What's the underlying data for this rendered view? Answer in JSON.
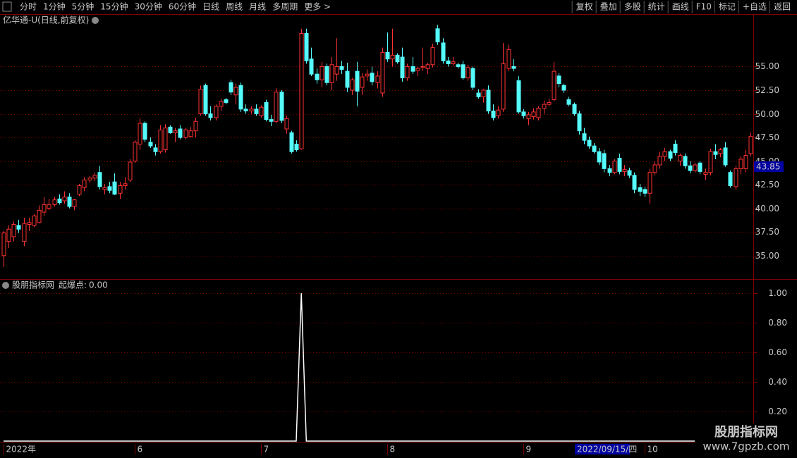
{
  "toolbar": {
    "left": [
      "分时",
      "1分钟",
      "5分钟",
      "15分钟",
      "30分钟",
      "60分钟",
      "日线",
      "周线",
      "月线",
      "多周期",
      "更多 >"
    ],
    "active_tab": 6,
    "right": [
      "复权",
      "叠加",
      "多股",
      "统计",
      "画线",
      "F10",
      "标记",
      "+自选",
      "返回"
    ]
  },
  "main_header": "亿华通-U(日线,前复权)",
  "last_price": "43.85",
  "indicator_header": {
    "name": "股朋指标网",
    "readout_label": "起爆点:",
    "readout_value": "0.00"
  },
  "cursor_date": "2022/09/15/四",
  "watermark": {
    "title": "股朋指标网",
    "url": "www.7gpzb.com"
  },
  "chart_data": [
    {
      "type": "candlestick",
      "up_color": "#ff3232",
      "down_color": "#54fcfc",
      "grid": true,
      "ylim": [
        32.6,
        60.4
      ],
      "yticks": [
        {
          "value": 35,
          "label": "35.00"
        },
        {
          "value": 37.5,
          "label": "37.50"
        },
        {
          "value": 40,
          "label": "40.00"
        },
        {
          "value": 42.5,
          "label": "42.50"
        },
        {
          "value": 45,
          "label": "45.00"
        },
        {
          "value": 47.5,
          "label": "47.50"
        },
        {
          "value": 50,
          "label": "50.00"
        },
        {
          "value": 52.5,
          "label": "52.50"
        },
        {
          "value": 55,
          "label": "55.00"
        }
      ],
      "categories": [
        "2022年",
        null,
        null,
        null,
        null,
        null,
        null,
        null,
        null,
        null,
        null,
        null,
        null,
        null,
        null,
        null,
        null,
        null,
        null,
        null,
        null,
        null,
        null,
        null,
        null,
        null,
        "6",
        null,
        null,
        null,
        null,
        null,
        null,
        null,
        null,
        null,
        null,
        null,
        null,
        null,
        null,
        null,
        null,
        null,
        null,
        null,
        null,
        null,
        null,
        null,
        null,
        "7",
        null,
        null,
        null,
        null,
        null,
        null,
        null,
        null,
        null,
        null,
        null,
        null,
        null,
        null,
        null,
        null,
        null,
        null,
        null,
        null,
        null,
        null,
        null,
        null,
        "8",
        null,
        null,
        null,
        null,
        null,
        null,
        null,
        null,
        null,
        null,
        null,
        null,
        null,
        null,
        null,
        null,
        null,
        null,
        null,
        null,
        null,
        null,
        null,
        null,
        null,
        null,
        "9",
        null,
        null,
        null,
        null,
        null,
        null,
        null,
        null,
        null,
        null,
        null,
        null,
        null,
        null,
        null,
        null,
        null,
        null,
        null,
        null,
        null,
        null,
        null,
        "10",
        null,
        null,
        null,
        null,
        null,
        null,
        null,
        null,
        null,
        null,
        null,
        null,
        null,
        null,
        null,
        null,
        null,
        null,
        null,
        null,
        null
      ],
      "ohlc": [
        [
          35.0,
          37.6,
          33.8,
          37.4
        ],
        [
          36.5,
          38.2,
          35.8,
          37.8
        ],
        [
          37.0,
          38.6,
          36.5,
          38.3
        ],
        [
          38.2,
          38.8,
          37.4,
          37.8
        ],
        [
          36.5,
          39.0,
          36.0,
          38.4
        ],
        [
          38.3,
          39.0,
          37.6,
          38.5
        ],
        [
          38.2,
          39.4,
          38.0,
          39.2
        ],
        [
          38.5,
          40.3,
          38.4,
          39.8
        ],
        [
          39.6,
          41.2,
          39.2,
          40.4
        ],
        [
          40.0,
          41.0,
          39.8,
          40.4
        ],
        [
          40.4,
          41.2,
          40.2,
          40.9
        ],
        [
          41.0,
          41.5,
          40.4,
          40.6
        ],
        [
          40.8,
          41.8,
          40.5,
          41.2
        ],
        [
          41.2,
          41.6,
          40.0,
          40.2
        ],
        [
          40.2,
          41.0,
          39.8,
          40.9
        ],
        [
          41.5,
          42.6,
          41.3,
          42.4
        ],
        [
          42.2,
          43.3,
          41.8,
          43.0
        ],
        [
          43.0,
          43.4,
          42.7,
          43.2
        ],
        [
          43.2,
          43.8,
          42.9,
          43.5
        ],
        [
          43.8,
          44.5,
          42.0,
          42.3
        ],
        [
          42.0,
          42.6,
          41.5,
          42.2
        ],
        [
          42.3,
          42.8,
          41.6,
          41.9
        ],
        [
          42.8,
          43.7,
          41.4,
          41.5
        ],
        [
          41.6,
          42.8,
          41.0,
          42.4
        ],
        [
          42.4,
          43.3,
          42.0,
          42.6
        ],
        [
          43.0,
          45.2,
          42.8,
          44.9
        ],
        [
          45.0,
          47.2,
          44.8,
          47.0
        ],
        [
          46.8,
          49.5,
          46.2,
          49.0
        ],
        [
          49.0,
          49.2,
          47.0,
          47.3
        ],
        [
          47.0,
          47.5,
          46.4,
          46.6
        ],
        [
          46.4,
          46.8,
          45.6,
          46.0
        ],
        [
          46.0,
          48.8,
          45.8,
          48.3
        ],
        [
          46.2,
          48.9,
          45.9,
          48.5
        ],
        [
          48.6,
          48.8,
          47.9,
          48.0
        ],
        [
          48.0,
          48.5,
          47.0,
          48.2
        ],
        [
          48.4,
          48.8,
          47.3,
          47.5
        ],
        [
          47.5,
          48.5,
          47.3,
          48.3
        ],
        [
          47.6,
          48.6,
          47.5,
          48.2
        ],
        [
          48.2,
          49.6,
          47.5,
          49.2
        ],
        [
          50.0,
          53.0,
          49.8,
          52.6
        ],
        [
          53.0,
          53.2,
          49.8,
          50.0
        ],
        [
          50.0,
          50.8,
          49.3,
          49.6
        ],
        [
          49.6,
          51.0,
          49.3,
          50.8
        ],
        [
          50.8,
          51.6,
          50.3,
          51.3
        ],
        [
          51.5,
          51.7,
          51.0,
          51.2
        ],
        [
          53.3,
          53.6,
          52.0,
          52.3
        ],
        [
          52.0,
          53.2,
          51.0,
          52.8
        ],
        [
          53.0,
          53.3,
          50.2,
          50.5
        ],
        [
          50.5,
          51.0,
          50.0,
          50.3
        ],
        [
          50.3,
          50.8,
          50.0,
          50.5
        ],
        [
          50.5,
          51.0,
          49.8,
          50.0
        ],
        [
          49.8,
          50.9,
          49.6,
          50.7
        ],
        [
          51.2,
          51.5,
          49.2,
          49.4
        ],
        [
          49.4,
          49.9,
          48.7,
          49.2
        ],
        [
          49.2,
          52.7,
          49.0,
          52.3
        ],
        [
          52.3,
          52.5,
          49.0,
          49.3
        ],
        [
          48.4,
          49.8,
          47.9,
          49.5
        ],
        [
          48.0,
          48.2,
          45.8,
          46.0
        ],
        [
          46.8,
          47.2,
          46.0,
          46.2
        ],
        [
          46.3,
          59.0,
          46.2,
          58.5
        ],
        [
          58.5,
          59.0,
          55.3,
          55.6
        ],
        [
          55.8,
          57.0,
          54.0,
          54.2
        ],
        [
          54.2,
          54.8,
          53.2,
          53.6
        ],
        [
          53.6,
          55.5,
          52.8,
          55.0
        ],
        [
          55.0,
          55.3,
          53.0,
          53.3
        ],
        [
          53.3,
          56.0,
          52.5,
          55.2
        ],
        [
          54.2,
          58.0,
          53.5,
          55.0
        ],
        [
          55.0,
          55.6,
          54.2,
          54.7
        ],
        [
          54.5,
          55.4,
          52.3,
          52.8
        ],
        [
          52.5,
          53.8,
          52.0,
          53.6
        ],
        [
          54.5,
          55.5,
          50.8,
          52.4
        ],
        [
          52.8,
          54.3,
          52.0,
          53.9
        ],
        [
          54.0,
          54.7,
          53.5,
          54.2
        ],
        [
          54.3,
          55.0,
          53.0,
          53.4
        ],
        [
          53.3,
          54.5,
          52.7,
          54.0
        ],
        [
          52.2,
          57.0,
          51.8,
          56.5
        ],
        [
          56.5,
          58.6,
          55.5,
          55.8
        ],
        [
          55.8,
          59.0,
          55.0,
          56.2
        ],
        [
          56.2,
          56.4,
          55.3,
          55.5
        ],
        [
          56.0,
          57.0,
          53.4,
          53.8
        ],
        [
          53.8,
          55.3,
          53.5,
          55.0
        ],
        [
          55.0,
          56.0,
          54.2,
          54.5
        ],
        [
          54.6,
          55.0,
          54.0,
          54.8
        ],
        [
          54.9,
          57.0,
          54.5,
          55.0
        ],
        [
          54.8,
          55.4,
          54.2,
          55.2
        ],
        [
          55.2,
          57.4,
          54.9,
          57.0
        ],
        [
          59.0,
          59.4,
          57.3,
          57.6
        ],
        [
          57.5,
          58.0,
          55.3,
          55.6
        ],
        [
          55.6,
          56.0,
          55.0,
          55.3
        ],
        [
          55.3,
          56.0,
          55.1,
          55.5
        ],
        [
          55.2,
          55.4,
          54.8,
          55.0
        ],
        [
          55.2,
          55.6,
          53.6,
          53.8
        ],
        [
          53.8,
          55.2,
          53.5,
          54.9
        ],
        [
          54.8,
          55.0,
          52.5,
          52.8
        ],
        [
          52.2,
          52.6,
          51.6,
          51.8
        ],
        [
          51.8,
          52.6,
          51.2,
          52.5
        ],
        [
          52.5,
          53.0,
          50.0,
          50.3
        ],
        [
          50.3,
          51.0,
          49.3,
          49.6
        ],
        [
          49.8,
          50.8,
          49.5,
          50.4
        ],
        [
          50.5,
          57.5,
          50.2,
          55.3
        ],
        [
          54.8,
          57.3,
          54.5,
          56.8
        ],
        [
          55.0,
          55.8,
          54.5,
          54.8
        ],
        [
          53.5,
          54.0,
          50.0,
          50.2
        ],
        [
          50.2,
          50.5,
          49.5,
          49.8
        ],
        [
          49.5,
          50.2,
          48.8,
          49.9
        ],
        [
          49.7,
          50.6,
          49.4,
          50.2
        ],
        [
          49.6,
          50.8,
          49.3,
          50.6
        ],
        [
          50.6,
          51.4,
          50.0,
          51.0
        ],
        [
          51.0,
          51.6,
          50.8,
          51.2
        ],
        [
          51.5,
          55.5,
          51.3,
          54.5
        ],
        [
          54.0,
          54.3,
          52.8,
          53.2
        ],
        [
          53.0,
          53.2,
          52.2,
          52.5
        ],
        [
          51.5,
          51.8,
          50.8,
          51.0
        ],
        [
          51.0,
          51.2,
          49.8,
          50.0
        ],
        [
          50.0,
          50.3,
          47.8,
          48.2
        ],
        [
          47.9,
          48.5,
          46.8,
          47.2
        ],
        [
          47.2,
          47.6,
          46.3,
          46.6
        ],
        [
          46.6,
          46.9,
          45.8,
          46.0
        ],
        [
          46.0,
          46.4,
          44.6,
          44.9
        ],
        [
          45.8,
          46.2,
          43.8,
          44.2
        ],
        [
          44.2,
          44.6,
          43.4,
          43.8
        ],
        [
          43.8,
          45.2,
          43.6,
          45.0
        ],
        [
          45.3,
          45.8,
          43.6,
          43.9
        ],
        [
          43.9,
          44.6,
          43.4,
          44.1
        ],
        [
          44.0,
          44.3,
          43.2,
          43.5
        ],
        [
          43.5,
          43.8,
          41.6,
          42.0
        ],
        [
          42.2,
          42.6,
          41.3,
          41.8
        ],
        [
          42.0,
          42.3,
          41.2,
          41.6
        ],
        [
          41.6,
          44.2,
          40.5,
          43.8
        ],
        [
          43.8,
          45.0,
          43.5,
          44.6
        ],
        [
          44.6,
          46.0,
          44.2,
          45.5
        ],
        [
          45.5,
          46.4,
          45.0,
          46.0
        ],
        [
          46.0,
          46.2,
          45.0,
          45.3
        ],
        [
          46.8,
          47.2,
          45.6,
          45.9
        ],
        [
          45.0,
          45.8,
          44.5,
          45.6
        ],
        [
          45.5,
          45.8,
          44.2,
          44.5
        ],
        [
          44.5,
          45.0,
          43.7,
          44.0
        ],
        [
          44.0,
          44.8,
          43.8,
          44.6
        ],
        [
          44.8,
          45.0,
          43.6,
          43.9
        ],
        [
          43.6,
          44.2,
          43.0,
          43.8
        ],
        [
          43.8,
          46.3,
          43.5,
          46.0
        ],
        [
          46.0,
          46.8,
          45.2,
          45.7
        ],
        [
          45.8,
          46.4,
          45.4,
          46.2
        ],
        [
          46.4,
          47.0,
          44.4,
          44.6
        ],
        [
          43.8,
          44.0,
          42.2,
          42.4
        ],
        [
          42.3,
          44.5,
          42.0,
          44.2
        ],
        [
          44.2,
          45.5,
          43.6,
          45.2
        ],
        [
          44.2,
          46.2,
          43.8,
          45.6
        ],
        [
          45.8,
          48.0,
          45.5,
          47.6
        ]
      ]
    },
    {
      "type": "line",
      "color": "#ffffff",
      "grid": true,
      "ylim": [
        0,
        1.086
      ],
      "yticks": [
        {
          "value": 0.2,
          "label": "0.20"
        },
        {
          "value": 0.4,
          "label": "0.40"
        },
        {
          "value": 0.6,
          "label": "0.60"
        },
        {
          "value": 0.8,
          "label": "0.80"
        },
        {
          "value": 1,
          "label": "1.00"
        }
      ],
      "values": [
        0,
        0,
        0,
        0,
        0,
        0,
        0,
        0,
        0,
        0,
        0,
        0,
        0,
        0,
        0,
        0,
        0,
        0,
        0,
        0,
        0,
        0,
        0,
        0,
        0,
        0,
        0,
        0,
        0,
        0,
        0,
        0,
        0,
        0,
        0,
        0,
        0,
        0,
        0,
        0,
        0,
        0,
        0,
        0,
        0,
        0,
        0,
        0,
        0,
        0,
        0,
        0,
        0,
        0,
        0,
        0,
        0,
        0,
        0,
        1,
        0,
        0,
        0,
        0,
        0,
        0,
        0,
        0,
        0,
        0,
        0,
        0,
        0,
        0,
        0,
        0,
        0,
        0,
        0,
        0,
        0,
        0,
        0,
        0,
        0,
        0,
        0,
        0,
        0,
        0,
        0,
        0,
        0,
        0,
        0,
        0,
        0,
        0,
        0,
        0,
        0,
        0,
        0,
        0,
        0,
        0,
        0,
        0,
        0,
        0,
        0,
        0,
        0,
        0,
        0,
        0,
        0,
        0,
        0,
        0,
        0,
        0,
        0,
        0,
        0,
        0,
        0,
        0,
        0,
        0,
        0,
        0,
        0,
        0,
        0,
        0,
        0,
        0,
        0
      ]
    }
  ]
}
